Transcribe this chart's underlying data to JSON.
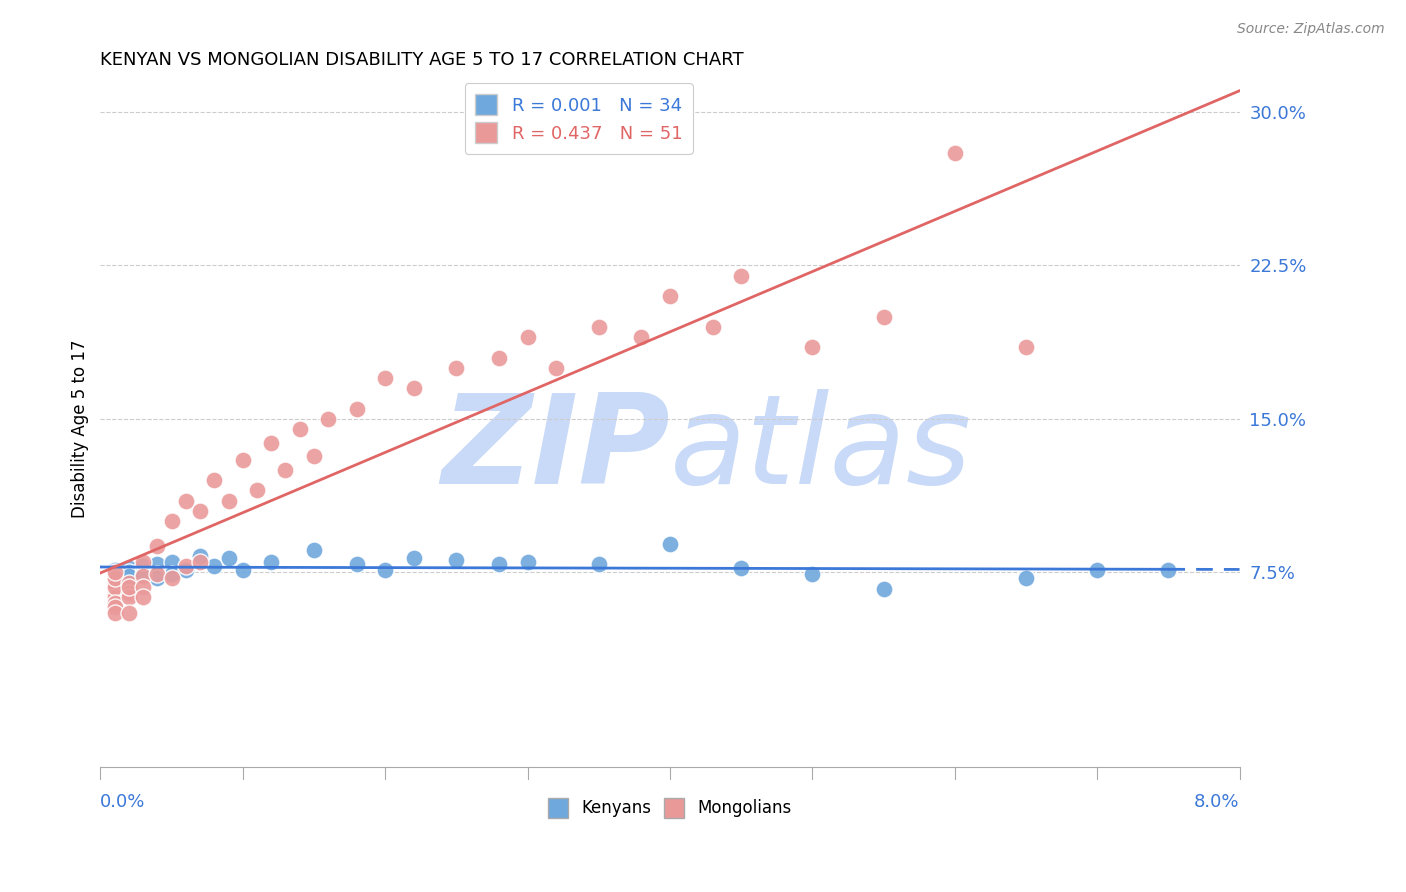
{
  "title": "KENYAN VS MONGOLIAN DISABILITY AGE 5 TO 17 CORRELATION CHART",
  "source": "Source: ZipAtlas.com",
  "ylabel": "Disability Age 5 to 17",
  "ytick_positions": [
    0.075,
    0.15,
    0.225,
    0.3
  ],
  "ytick_labels": [
    "7.5%",
    "15.0%",
    "22.5%",
    "30.0%"
  ],
  "xmin": 0.0,
  "xmax": 0.08,
  "ymin": -0.025,
  "ymax": 0.315,
  "kenyan_R": 0.001,
  "kenyan_N": 34,
  "mongolian_R": 0.437,
  "mongolian_N": 51,
  "blue_color": "#6fa8dc",
  "pink_color": "#ea9999",
  "blue_line_color": "#3c78d8",
  "pink_line_color": "#e06666",
  "watermark_color": "#c9daf8",
  "title_color": "#000000",
  "kenyan_x": [
    0.001,
    0.001,
    0.001,
    0.001,
    0.002,
    0.002,
    0.002,
    0.003,
    0.003,
    0.004,
    0.004,
    0.005,
    0.005,
    0.006,
    0.007,
    0.008,
    0.009,
    0.01,
    0.012,
    0.015,
    0.018,
    0.02,
    0.022,
    0.025,
    0.028,
    0.03,
    0.035,
    0.04,
    0.045,
    0.05,
    0.055,
    0.065,
    0.07,
    0.075
  ],
  "kenyan_y": [
    0.075,
    0.076,
    0.074,
    0.073,
    0.077,
    0.075,
    0.073,
    0.078,
    0.074,
    0.079,
    0.072,
    0.08,
    0.074,
    0.076,
    0.083,
    0.078,
    0.082,
    0.076,
    0.08,
    0.086,
    0.079,
    0.076,
    0.082,
    0.081,
    0.079,
    0.08,
    0.079,
    0.089,
    0.077,
    0.074,
    0.067,
    0.072,
    0.076,
    0.076
  ],
  "mongolian_x": [
    0.001,
    0.001,
    0.001,
    0.001,
    0.001,
    0.001,
    0.001,
    0.001,
    0.001,
    0.002,
    0.002,
    0.002,
    0.002,
    0.002,
    0.003,
    0.003,
    0.003,
    0.003,
    0.004,
    0.004,
    0.005,
    0.005,
    0.006,
    0.006,
    0.007,
    0.007,
    0.008,
    0.009,
    0.01,
    0.011,
    0.012,
    0.013,
    0.014,
    0.015,
    0.016,
    0.018,
    0.02,
    0.022,
    0.025,
    0.028,
    0.03,
    0.032,
    0.035,
    0.038,
    0.04,
    0.043,
    0.045,
    0.05,
    0.055,
    0.06,
    0.065
  ],
  "mongolian_y": [
    0.065,
    0.07,
    0.063,
    0.068,
    0.072,
    0.06,
    0.058,
    0.075,
    0.055,
    0.07,
    0.065,
    0.063,
    0.068,
    0.055,
    0.08,
    0.073,
    0.068,
    0.063,
    0.088,
    0.074,
    0.1,
    0.072,
    0.11,
    0.078,
    0.105,
    0.08,
    0.12,
    0.11,
    0.13,
    0.115,
    0.138,
    0.125,
    0.145,
    0.132,
    0.15,
    0.155,
    0.17,
    0.165,
    0.175,
    0.18,
    0.19,
    0.175,
    0.195,
    0.19,
    0.21,
    0.195,
    0.22,
    0.185,
    0.2,
    0.28,
    0.185
  ]
}
